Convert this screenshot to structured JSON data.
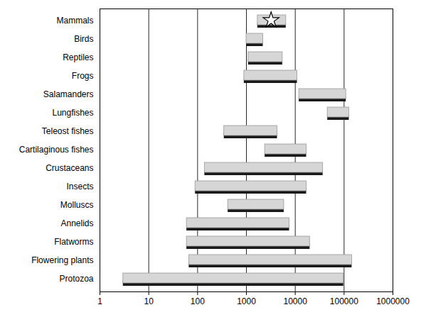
{
  "chart_data": {
    "type": "range_bar",
    "orientation": "horizontal",
    "log": "x",
    "grid": true,
    "color": "#d6d6d6",
    "categories": [
      "Mammals",
      "Birds",
      "Reptiles",
      "Frogs",
      "Salamanders",
      "Lungfishes",
      "Teleost fishes",
      "Cartilaginous fishes",
      "Crustaceans",
      "Insects",
      "Molluscs",
      "Annelids",
      "Flatworms",
      "Flowering plants",
      "Protozoa"
    ],
    "starts": [
      1700,
      1000,
      1100,
      900,
      12000,
      46000,
      350,
      2400,
      140,
      90,
      420,
      60,
      60,
      67,
      3
    ],
    "ends": [
      6500,
      2200,
      5500,
      11000,
      110000,
      127000,
      4300,
      17000,
      37000,
      17000,
      5900,
      7600,
      20000,
      145000,
      98000
    ],
    "highlight": {
      "category": "Mammals",
      "value": 3200,
      "marker": "star"
    },
    "xlim": [
      1,
      1000000
    ],
    "xticks": [
      1,
      10,
      100,
      1000,
      10000,
      100000,
      1000000
    ]
  }
}
